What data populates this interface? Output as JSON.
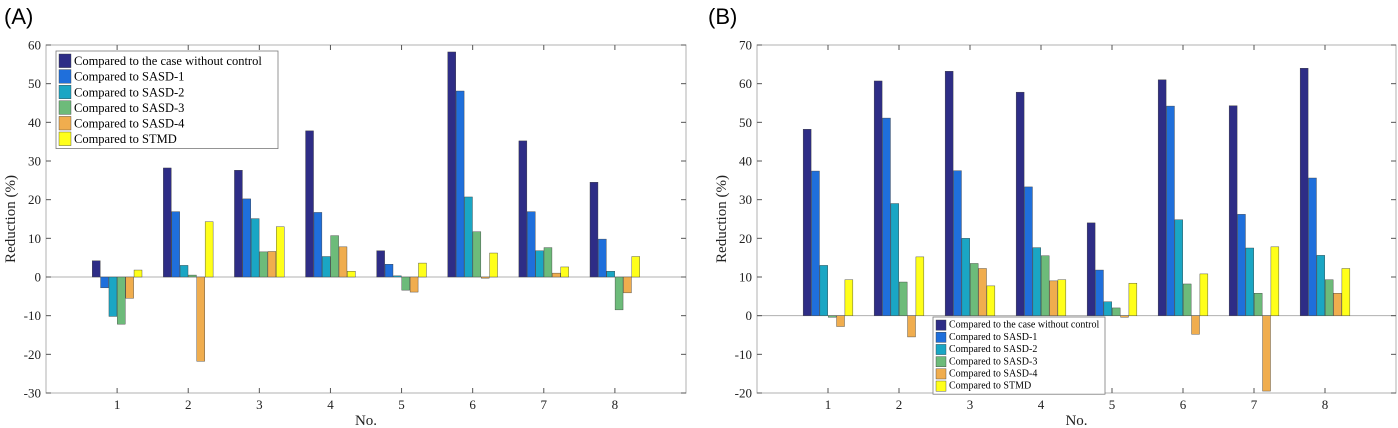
{
  "colors": {
    "series": [
      "#2e2d86",
      "#1f6fdb",
      "#1aa6c4",
      "#6dbb7a",
      "#f0ad4e",
      "#ffff1a"
    ],
    "axis": "#b0b0b0",
    "bar_edge": "#3a3a3a"
  },
  "chart_data": [
    {
      "panel_label": "(A)",
      "type": "bar",
      "xlabel": "No.",
      "ylabel": "Reduction (%)",
      "categories": [
        "1",
        "2",
        "3",
        "4",
        "5",
        "6",
        "7",
        "8"
      ],
      "ylim": [
        -30,
        60
      ],
      "yticks": [
        -30,
        -20,
        -10,
        0,
        10,
        20,
        30,
        40,
        50,
        60
      ],
      "legend_position": "top-left",
      "series": [
        {
          "name": "Compared to the case without control",
          "values": [
            4.2,
            28.2,
            27.6,
            37.8,
            6.8,
            58.2,
            35.2,
            24.5
          ]
        },
        {
          "name": "Compared to SASD-1",
          "values": [
            -2.8,
            16.9,
            20.2,
            16.7,
            3.3,
            48.1,
            16.9,
            9.8
          ]
        },
        {
          "name": "Compared to SASD-2",
          "values": [
            -10.2,
            3.0,
            15.1,
            5.3,
            0.3,
            20.7,
            6.8,
            1.5
          ]
        },
        {
          "name": "Compared to SASD-3",
          "values": [
            -12.2,
            0.5,
            6.5,
            10.7,
            -3.4,
            11.7,
            7.6,
            -8.5
          ]
        },
        {
          "name": "Compared to SASD-4",
          "values": [
            -5.5,
            -21.8,
            6.6,
            7.8,
            -3.9,
            -0.3,
            1.0,
            -4.1
          ]
        },
        {
          "name": "Compared to STMD",
          "values": [
            1.8,
            14.3,
            13.0,
            1.5,
            3.6,
            6.2,
            2.6,
            5.3
          ]
        }
      ]
    },
    {
      "panel_label": "(B)",
      "type": "bar",
      "xlabel": "No.",
      "ylabel": "Reduction (%)",
      "categories": [
        "1",
        "2",
        "3",
        "4",
        "5",
        "6",
        "7",
        "8"
      ],
      "ylim": [
        -20,
        70
      ],
      "yticks": [
        -20,
        -10,
        0,
        10,
        20,
        30,
        40,
        50,
        60,
        70
      ],
      "legend_position": "bottom-center",
      "series": [
        {
          "name": "Compared to the case without control",
          "values": [
            48.2,
            60.7,
            63.2,
            57.8,
            24.0,
            61.0,
            54.3,
            64.0
          ]
        },
        {
          "name": "Compared to SASD-1",
          "values": [
            37.4,
            51.1,
            37.5,
            33.3,
            11.8,
            54.2,
            26.2,
            35.6
          ]
        },
        {
          "name": "Compared to SASD-2",
          "values": [
            13.0,
            29.0,
            20.0,
            17.6,
            3.6,
            24.8,
            17.5,
            15.6
          ]
        },
        {
          "name": "Compared to SASD-3",
          "values": [
            -0.4,
            8.7,
            13.5,
            15.5,
            2.0,
            8.2,
            5.8,
            9.3
          ]
        },
        {
          "name": "Compared to SASD-4",
          "values": [
            -2.8,
            -5.5,
            12.2,
            9.0,
            -0.4,
            -4.8,
            -19.5,
            5.8
          ]
        },
        {
          "name": "Compared to STMD",
          "values": [
            9.3,
            15.2,
            7.7,
            9.3,
            8.4,
            10.8,
            17.8,
            12.2
          ]
        }
      ]
    }
  ]
}
